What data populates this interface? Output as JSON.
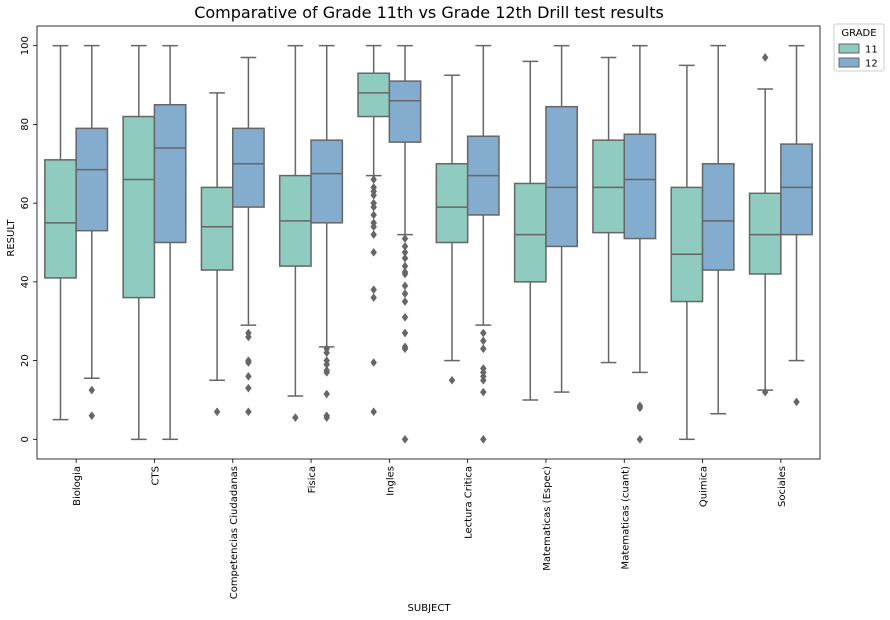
{
  "chart_data": {
    "type": "box",
    "title": "Comparative of Grade 11th vs Grade 12th Drill test results",
    "xlabel": "SUBJECT",
    "ylabel": "RESULT",
    "ylim": [
      -5,
      105
    ],
    "yticks": [
      0,
      20,
      40,
      60,
      80,
      100
    ],
    "grid": false,
    "legend": {
      "title": "GRADE",
      "placement": "outside-top-right"
    },
    "categories": [
      "Biologia",
      "CTS",
      "Competencias Ciudadanas",
      "Fisica",
      "Ingles",
      "Lectura Critica",
      "Matematicas (Espec)",
      "Matematicas (cuant)",
      "Quimica",
      "Sociales"
    ],
    "series": [
      {
        "name": "11",
        "color": "#8fcbbf",
        "boxes": [
          {
            "min": 5,
            "q1": 41,
            "median": 55,
            "q3": 71,
            "max": 100,
            "outliers": []
          },
          {
            "min": 0,
            "q1": 36,
            "median": 66,
            "q3": 82,
            "max": 100,
            "outliers": []
          },
          {
            "min": 15,
            "q1": 43,
            "median": 54,
            "q3": 64,
            "max": 88,
            "outliers": [
              7
            ]
          },
          {
            "min": 11,
            "q1": 44,
            "median": 55.5,
            "q3": 67,
            "max": 100,
            "outliers": [
              5.5
            ]
          },
          {
            "min": 67,
            "q1": 82,
            "median": 88,
            "q3": 93,
            "max": 100,
            "outliers": [
              66,
              64,
              63,
              62,
              60,
              59,
              57,
              55,
              54,
              52,
              47.5,
              38,
              36,
              19.5,
              7
            ]
          },
          {
            "min": 20,
            "q1": 50,
            "median": 59,
            "q3": 70,
            "max": 92.5,
            "outliers": [
              15
            ]
          },
          {
            "min": 10,
            "q1": 40,
            "median": 52,
            "q3": 65,
            "max": 96,
            "outliers": []
          },
          {
            "min": 19.5,
            "q1": 52.5,
            "median": 64,
            "q3": 76,
            "max": 97,
            "outliers": []
          },
          {
            "min": 0,
            "q1": 35,
            "median": 47,
            "q3": 64,
            "max": 95,
            "outliers": []
          },
          {
            "min": 12.5,
            "q1": 42,
            "median": 52,
            "q3": 62.5,
            "max": 89,
            "outliers": [
              97,
              12
            ]
          }
        ]
      },
      {
        "name": "12",
        "color": "#84acce",
        "boxes": [
          {
            "min": 15.5,
            "q1": 53,
            "median": 68.5,
            "q3": 79,
            "max": 100,
            "outliers": [
              12.5,
              6
            ]
          },
          {
            "min": 0,
            "q1": 50,
            "median": 74,
            "q3": 85,
            "max": 100,
            "outliers": []
          },
          {
            "min": 29,
            "q1": 59,
            "median": 70,
            "q3": 79,
            "max": 97,
            "outliers": [
              27,
              26,
              20,
              19.5,
              16,
              13,
              7
            ]
          },
          {
            "min": 23.5,
            "q1": 55,
            "median": 67.5,
            "q3": 76,
            "max": 100,
            "outliers": [
              23,
              22,
              20,
              19,
              17.5,
              17,
              11.5,
              6,
              5.5
            ]
          },
          {
            "min": 52,
            "q1": 75.5,
            "median": 86,
            "q3": 91,
            "max": 100,
            "outliers": [
              51,
              49,
              47.5,
              46,
              44,
              42.5,
              42,
              39,
              37,
              35,
              31,
              27,
              23.5,
              23,
              0
            ]
          },
          {
            "min": 29,
            "q1": 57,
            "median": 67,
            "q3": 77,
            "max": 100,
            "outliers": [
              27,
              25,
              23,
              18,
              17,
              16,
              15,
              12,
              0
            ]
          },
          {
            "min": 12,
            "q1": 49,
            "median": 64,
            "q3": 84.5,
            "max": 100,
            "outliers": []
          },
          {
            "min": 17,
            "q1": 51,
            "median": 66,
            "q3": 77.5,
            "max": 100,
            "outliers": [
              8.5,
              8,
              0
            ]
          },
          {
            "min": 6.5,
            "q1": 43,
            "median": 55.5,
            "q3": 70,
            "max": 100,
            "outliers": []
          },
          {
            "min": 20,
            "q1": 52,
            "median": 64,
            "q3": 75,
            "max": 100,
            "outliers": [
              9.5
            ]
          }
        ]
      }
    ]
  }
}
